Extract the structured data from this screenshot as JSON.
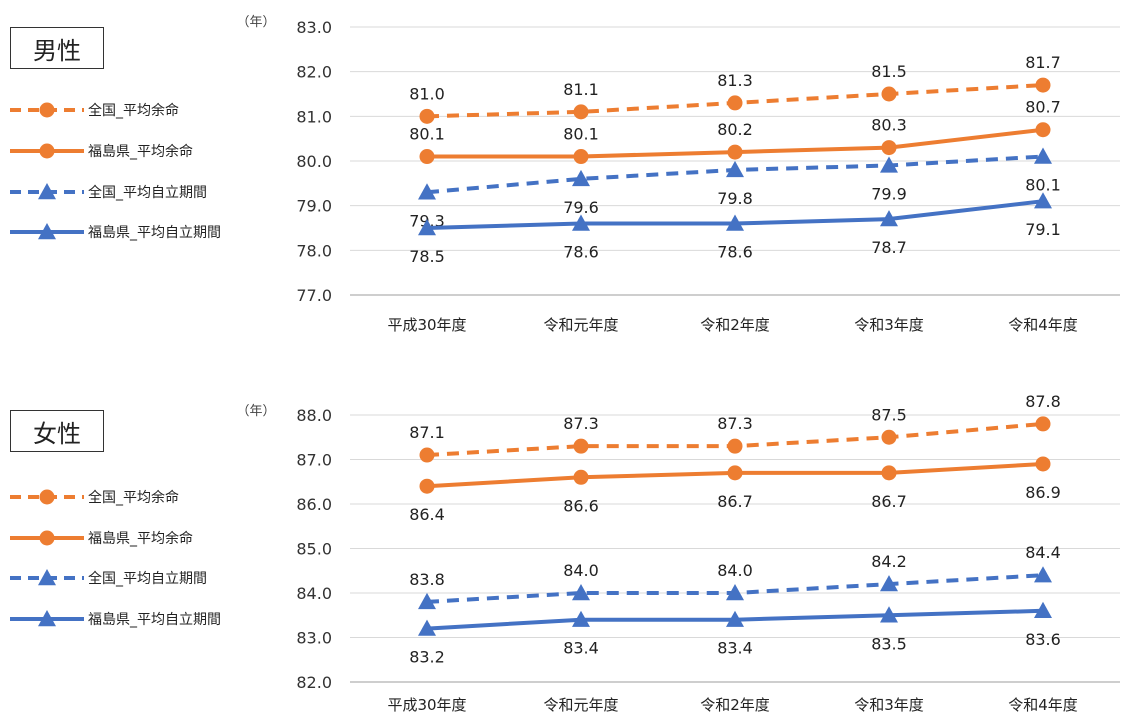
{
  "chart_data": [
    {
      "type": "line",
      "panel_label": "男性",
      "unit_label": "（年）",
      "categories": [
        "平成30年度",
        "令和元年度",
        "令和2年度",
        "令和3年度",
        "令和4年度"
      ],
      "ylim": [
        77.0,
        83.0
      ],
      "y_ticks": [
        "77.0",
        "78.0",
        "79.0",
        "80.0",
        "81.0",
        "82.0",
        "83.0"
      ],
      "grid": true,
      "legend_position": "left",
      "series": [
        {
          "name": "全国_平均余命",
          "color": "#ED7D31",
          "dash": true,
          "marker": "circle",
          "label_pos": "above",
          "values": [
            81.0,
            81.1,
            81.3,
            81.5,
            81.7
          ]
        },
        {
          "name": "福島県_平均余命",
          "color": "#ED7D31",
          "dash": false,
          "marker": "circle",
          "label_pos": "above",
          "values": [
            80.1,
            80.1,
            80.2,
            80.3,
            80.7
          ]
        },
        {
          "name": "全国_平均自立期間",
          "color": "#4472C4",
          "dash": true,
          "marker": "triangle",
          "label_pos": "below",
          "values": [
            79.3,
            79.6,
            79.8,
            79.9,
            80.1
          ]
        },
        {
          "name": "福島県_平均自立期間",
          "color": "#4472C4",
          "dash": false,
          "marker": "triangle",
          "label_pos": "below",
          "values": [
            78.5,
            78.6,
            78.6,
            78.7,
            79.1
          ]
        }
      ]
    },
    {
      "type": "line",
      "panel_label": "女性",
      "unit_label": "（年）",
      "categories": [
        "平成30年度",
        "令和元年度",
        "令和2年度",
        "令和3年度",
        "令和4年度"
      ],
      "ylim": [
        82.0,
        88.0
      ],
      "y_ticks": [
        "82.0",
        "83.0",
        "84.0",
        "85.0",
        "86.0",
        "87.0",
        "88.0"
      ],
      "grid": true,
      "legend_position": "left",
      "series": [
        {
          "name": "全国_平均余命",
          "color": "#ED7D31",
          "dash": true,
          "marker": "circle",
          "label_pos": "above",
          "values": [
            87.1,
            87.3,
            87.3,
            87.5,
            87.8
          ]
        },
        {
          "name": "福島県_平均余命",
          "color": "#ED7D31",
          "dash": false,
          "marker": "circle",
          "label_pos": "below",
          "values": [
            86.4,
            86.6,
            86.7,
            86.7,
            86.9
          ]
        },
        {
          "name": "全国_平均自立期間",
          "color": "#4472C4",
          "dash": true,
          "marker": "triangle",
          "label_pos": "above",
          "values": [
            83.8,
            84.0,
            84.0,
            84.2,
            84.4
          ]
        },
        {
          "name": "福島県_平均自立期間",
          "color": "#4472C4",
          "dash": false,
          "marker": "triangle",
          "label_pos": "below",
          "values": [
            83.2,
            83.4,
            83.4,
            83.5,
            83.6
          ]
        }
      ]
    }
  ]
}
